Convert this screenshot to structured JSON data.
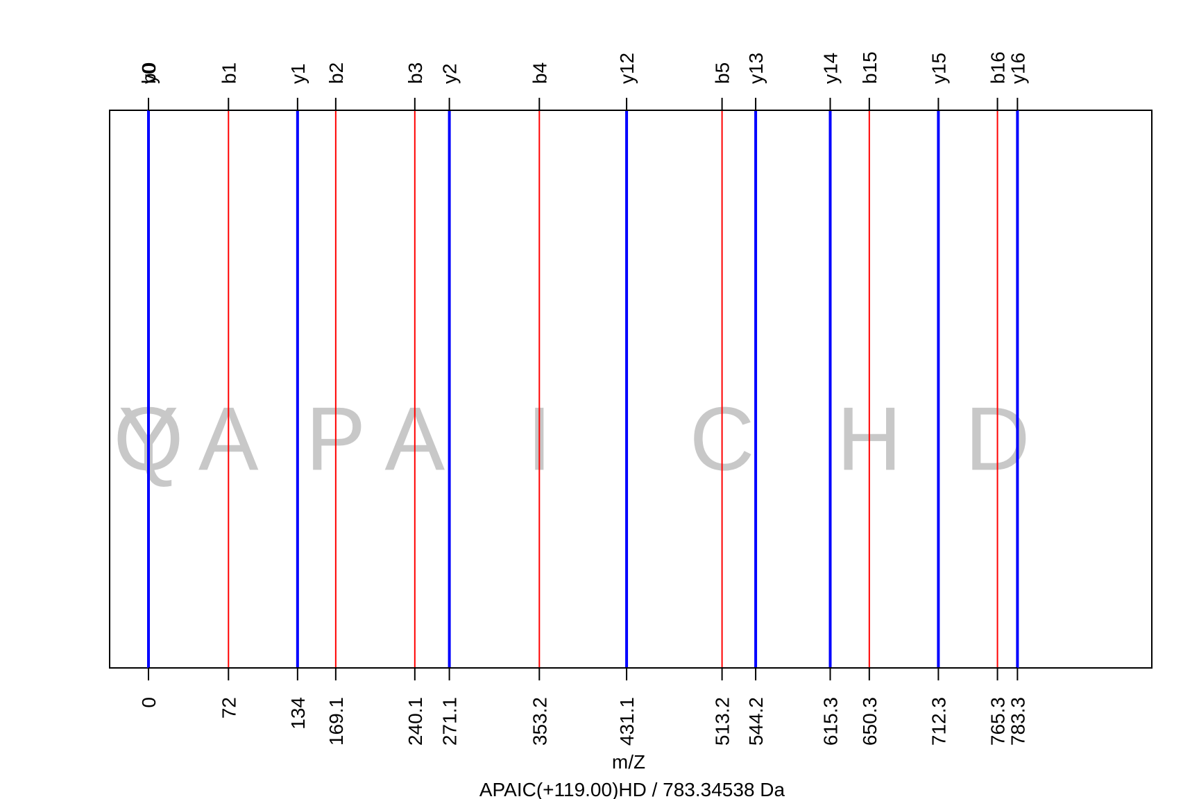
{
  "chart_data": {
    "type": "line",
    "title": "APAIC(+119.00)HD / 783.34538 Da",
    "xlabel": "m/Z",
    "xlim": [
      -45,
      1140
    ],
    "colors": {
      "b": "#ff0000",
      "y": "#0000ff",
      "residue": "#c8c8c8",
      "frame": "#000000"
    },
    "b_ions": [
      {
        "label": "b0",
        "mz": 0
      },
      {
        "label": "b1",
        "mz": 88
      },
      {
        "label": "b2",
        "mz": 206
      },
      {
        "label": "b3",
        "mz": 293
      },
      {
        "label": "b4",
        "mz": 430
      },
      {
        "label": "b5",
        "mz": 631
      },
      {
        "label": "b15",
        "mz": 793
      },
      {
        "label": "b16",
        "mz": 934
      }
    ],
    "y_ions": [
      {
        "label": "y0",
        "mz": 0
      },
      {
        "label": "y1",
        "mz": 164
      },
      {
        "label": "y2",
        "mz": 331
      },
      {
        "label": "y12",
        "mz": 526
      },
      {
        "label": "y13",
        "mz": 668
      },
      {
        "label": "y14",
        "mz": 750
      },
      {
        "label": "y15",
        "mz": 869
      },
      {
        "label": "y16",
        "mz": 956
      }
    ],
    "tick_values": [
      0,
      88,
      164,
      206,
      293,
      331,
      430,
      526,
      631,
      668,
      750,
      793,
      869,
      934,
      956
    ],
    "tick_labels": [
      "0",
      "72",
      "134",
      "169.1",
      "240.1",
      "271.1",
      "353.2",
      "431.1",
      "513.2",
      "544.2",
      "615.3",
      "650.3",
      "712.3",
      "765.3",
      "783.3"
    ],
    "residues": [
      {
        "letter": "Q",
        "mz": 0
      },
      {
        "letter": "Y",
        "mz": 0
      },
      {
        "letter": "A",
        "mz": 88
      },
      {
        "letter": "P",
        "mz": 206
      },
      {
        "letter": "A",
        "mz": 293
      },
      {
        "letter": "I",
        "mz": 430
      },
      {
        "letter": "C",
        "mz": 631
      },
      {
        "letter": "H",
        "mz": 793
      },
      {
        "letter": "D",
        "mz": 934
      }
    ]
  }
}
